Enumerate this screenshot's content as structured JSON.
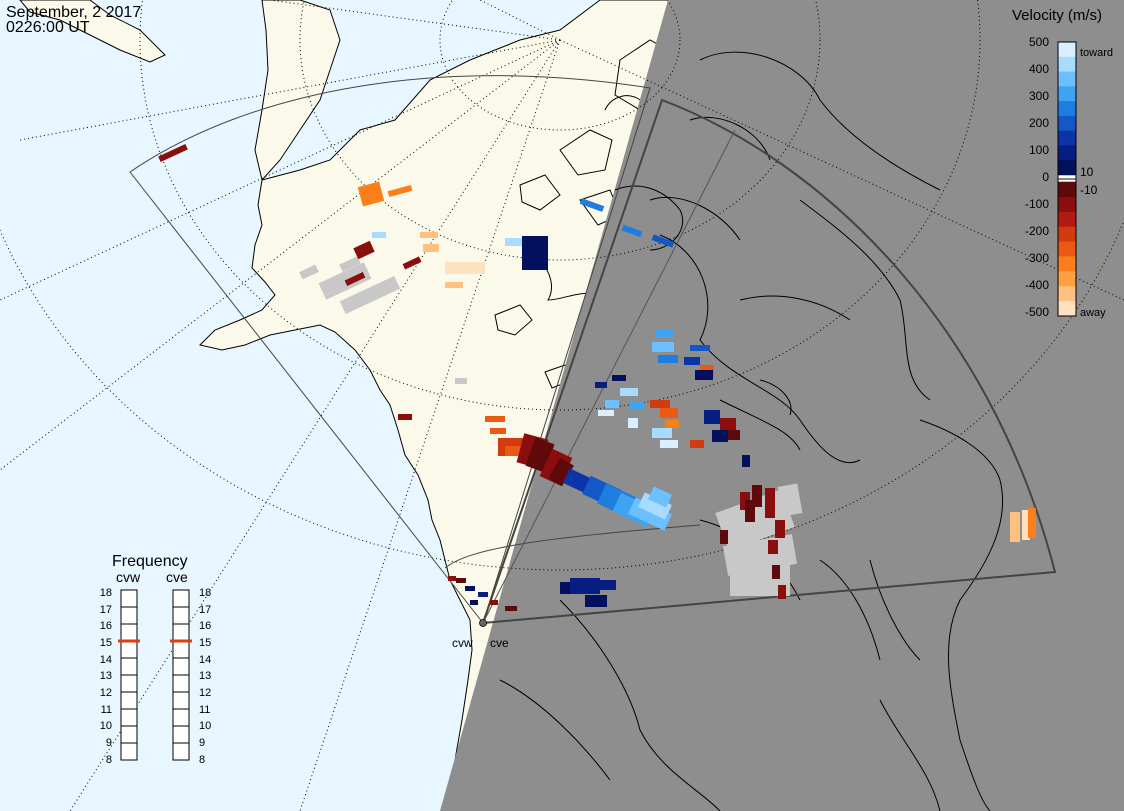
{
  "header": {
    "date": "September, 2 2017",
    "time": "0226:00 UT"
  },
  "map": {
    "ocean_color": "#e8f6ff",
    "land_color": "#fbfaea",
    "night_color": "#8e8e8e",
    "coast_color": "#000000",
    "grid_color": "#000000",
    "fov_color": "#333333",
    "ground_scatter_color": "#c8c8c8",
    "radar_labels": [
      "cvw",
      "cve"
    ]
  },
  "velocity_scale": {
    "title": "Velocity (m/s)",
    "toward_label": "toward",
    "away_label": "away",
    "ticks": [
      "500",
      "400",
      "300",
      "200",
      "100",
      "10",
      "0",
      "-10",
      "-100",
      "-200",
      "-300",
      "-400",
      "-500"
    ],
    "colors_toward": [
      "#d8f0ff",
      "#a8dcff",
      "#6cc0ff",
      "#3ea4f2",
      "#1e7ee0",
      "#1358c4",
      "#0a34a8",
      "#061e82",
      "#03105e"
    ],
    "colors_away": [
      "#5e0a0a",
      "#8a0e0e",
      "#b01a10",
      "#d23a10",
      "#ea5a14",
      "#fa7e1a",
      "#ffa040",
      "#ffc080",
      "#ffe0c0"
    ]
  },
  "frequency": {
    "title": "Frequency",
    "left_label": "cvw",
    "right_label": "cve",
    "ticks": [
      "18",
      "17",
      "16",
      "15",
      "14",
      "13",
      "12",
      "11",
      "10",
      "9",
      "8"
    ],
    "cvw_value": 15,
    "cve_value": 15,
    "marker_color": "#d84010"
  }
}
